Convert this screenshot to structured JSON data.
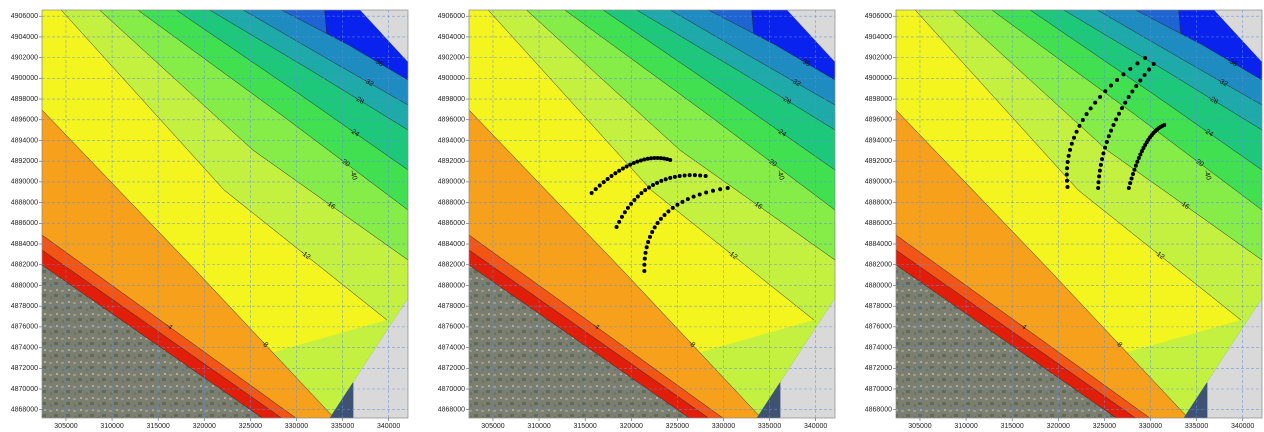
{
  "panels": [
    {
      "xlim": [
        302400,
        342100
      ],
      "ylim": [
        4867200,
        4906600
      ],
      "xticks": [
        305000,
        310000,
        315000,
        320000,
        325000,
        330000,
        335000,
        340000
      ],
      "yticks": [
        4868000,
        4870000,
        4872000,
        4874000,
        4876000,
        4878000,
        4880000,
        4882000,
        4884000,
        4886000,
        4888000,
        4890000,
        4892000,
        4894000,
        4896000,
        4898000,
        4900000,
        4902000,
        4904000,
        4906000
      ],
      "contour_labels": [
        "-4",
        "-8",
        "-12",
        "-16",
        "-20",
        "-24",
        "-28",
        "-32",
        "-36",
        "-40"
      ]
    },
    {
      "xlim": [
        302400,
        342100
      ],
      "ylim": [
        4867200,
        4906600
      ],
      "xticks": [
        305000,
        310000,
        315000,
        320000,
        325000,
        330000,
        335000,
        340000
      ],
      "yticks": [
        4868000,
        4870000,
        4872000,
        4874000,
        4876000,
        4878000,
        4880000,
        4882000,
        4884000,
        4886000,
        4888000,
        4890000,
        4892000,
        4894000,
        4896000,
        4898000,
        4900000,
        4902000,
        4904000,
        4906000
      ],
      "contour_labels": [
        "-4",
        "-8",
        "-12",
        "-16",
        "-20",
        "-24",
        "-28",
        "-32",
        "-36",
        "-40"
      ]
    },
    {
      "xlim": [
        302400,
        342100
      ],
      "ylim": [
        4867200,
        4906600
      ],
      "xticks": [
        305000,
        310000,
        315000,
        320000,
        325000,
        330000,
        335000,
        340000
      ],
      "yticks": [
        4868000,
        4870000,
        4872000,
        4874000,
        4876000,
        4878000,
        4880000,
        4882000,
        4884000,
        4886000,
        4888000,
        4890000,
        4892000,
        4894000,
        4896000,
        4898000,
        4900000,
        4902000,
        4904000,
        4906000
      ],
      "contour_labels": [
        "-4",
        "-8",
        "-12",
        "-16",
        "-20",
        "-24",
        "-28",
        "-32",
        "-36",
        "-40"
      ]
    }
  ]
}
